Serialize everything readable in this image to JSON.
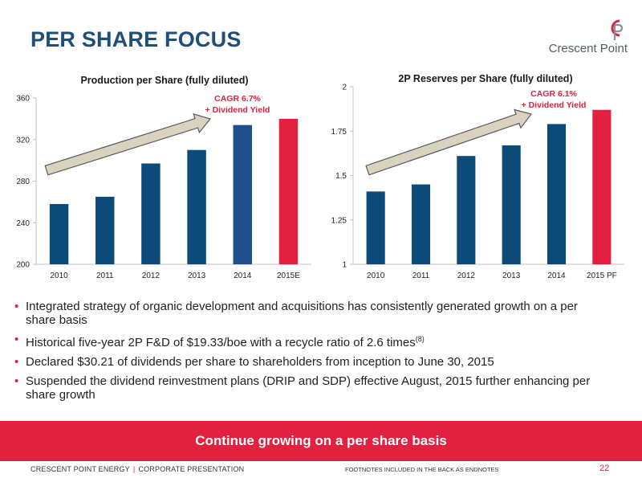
{
  "header": {
    "title": "PER SHARE FOCUS"
  },
  "logo": {
    "text": "Crescent Point"
  },
  "chart_data": [
    {
      "type": "bar",
      "title": "Production per Share (fully diluted)",
      "categories": [
        "2010",
        "2011",
        "2012",
        "2013",
        "2014",
        "2015E"
      ],
      "values": [
        258,
        265,
        297,
        310,
        334,
        340
      ],
      "bar_colors": [
        "#0c4a7a",
        "#0c4a7a",
        "#0c4a7a",
        "#0c4a7a",
        "#1f4e8a",
        "#e2203f"
      ],
      "ylim": [
        200,
        360
      ],
      "yticks": [
        200,
        240,
        280,
        320,
        360
      ],
      "annotation": {
        "line1": "CAGR 6.7%",
        "line2": "+ Dividend Yield"
      },
      "xlabel": "",
      "ylabel": ""
    },
    {
      "type": "bar",
      "title": "2P Reserves per Share (fully diluted)",
      "categories": [
        "2010",
        "2011",
        "2012",
        "2013",
        "2014",
        "2015 PF"
      ],
      "values": [
        1.41,
        1.45,
        1.61,
        1.67,
        1.79,
        1.87
      ],
      "bar_colors": [
        "#0c4a7a",
        "#0c4a7a",
        "#0c4a7a",
        "#0c4a7a",
        "#0c4a7a",
        "#e2203f"
      ],
      "ylim": [
        1,
        2
      ],
      "yticks": [
        "1",
        "1.25",
        "1.5",
        "1.75",
        "2"
      ],
      "annotation": {
        "line1": "CAGR 6.1%",
        "line2": "+ Dividend Yield"
      },
      "xlabel": "",
      "ylabel": ""
    }
  ],
  "bullets": [
    "Integrated strategy of organic development and acquisitions has consistently generated growth on a per share basis",
    "Historical five-year 2P F&D of $19.33/boe with a recycle ratio of 2.6 times",
    "Declared $30.21 of dividends per share to shareholders from inception to June 30, 2015",
    "Suspended the dividend reinvestment plans (DRIP and SDP) effective August, 2015 further enhancing per share growth"
  ],
  "bullet2_footnote": "(8)",
  "banner": {
    "text": "Continue growing on a per share basis"
  },
  "footer": {
    "company": "CRESCENT POINT ENERGY",
    "separator": "|",
    "section": "CORPORATE PRESENTATION",
    "footnotes": "FOOTNOTES INCLUDED IN THE BACK AS ENDNOTES",
    "page": "22"
  },
  "colors": {
    "brand_blue": "#1f4e79",
    "bar_blue": "#0c4a7a",
    "accent_red": "#e2203f",
    "arrow": "#d8d2bf"
  }
}
